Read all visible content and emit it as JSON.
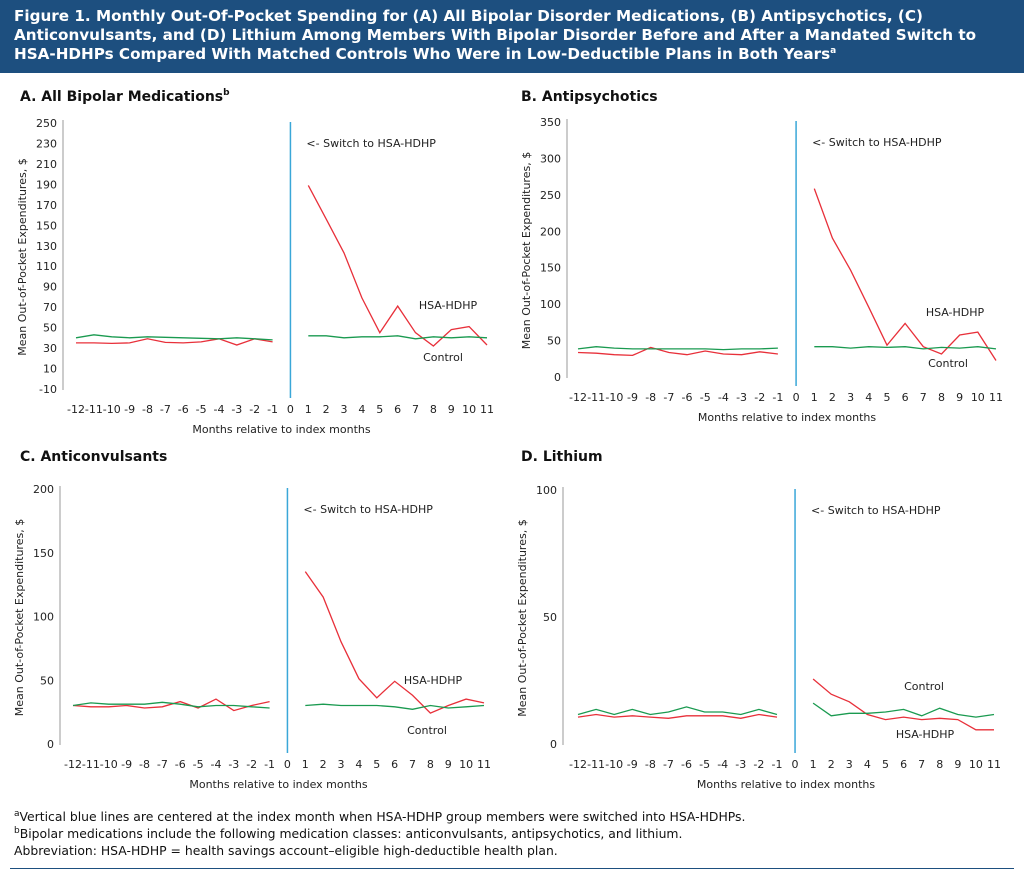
{
  "title": "Figure 1. Monthly Out-Of-Pocket Spending for (A) All Bipolar Disorder Medications, (B) Antipsychotics, (C) Anticonvulsants, and (D) Lithium Among Members With Bipolar Disorder Before and After a Mandated Switch to HSA-HDHPs Compared With Matched Controls Who Were in Low-Deductible Plans in Both Years",
  "title_sup": "a",
  "footnotes": [
    {
      "mark": "a",
      "text": "Vertical blue lines are centered at the index month when HSA-HDHP group members were switched into HSA-HDHPs."
    },
    {
      "mark": "b",
      "text": "Bipolar medications include the following medication classes: anticonvulsants, antipsychotics, and lithium."
    },
    {
      "text": "Abbreviation: HSA-HDHP = health savings account–eligible high-deductible health plan."
    }
  ],
  "chart_data": [
    {
      "type": "line",
      "title": "A. All Bipolar Medications",
      "title_sup": "b",
      "x_label": "Months relative to index months",
      "y_label": "Mean Out-of-Pocket Expenditures, $",
      "annotation": "<- Switch to HSA-HDHP",
      "vline_x": 0,
      "vline_color": "#3aa7d8",
      "x": [
        -12,
        -11,
        -10,
        -9,
        -8,
        -7,
        -6,
        -5,
        -4,
        -3,
        -2,
        -1,
        0,
        1,
        2,
        3,
        4,
        5,
        6,
        7,
        8,
        9,
        10,
        11
      ],
      "xlim": [
        -12,
        11
      ],
      "xticks": [
        -12,
        -11,
        -10,
        -9,
        -8,
        -7,
        -6,
        -5,
        -4,
        -3,
        -2,
        -1,
        0,
        1,
        2,
        3,
        4,
        5,
        6,
        7,
        8,
        9,
        10,
        11
      ],
      "ylim": [
        -10,
        250
      ],
      "yticks": [
        -10,
        10,
        30,
        50,
        70,
        90,
        110,
        130,
        150,
        170,
        190,
        210,
        230,
        250
      ],
      "grid": false,
      "series": [
        {
          "name": "HSA-HDHP",
          "color": "#e8303a",
          "values": [
            36,
            36,
            35.5,
            36,
            40,
            36.5,
            36,
            37,
            40,
            34,
            40,
            37,
            null,
            190,
            157,
            124,
            80,
            46,
            72,
            46,
            33,
            49,
            52,
            34
          ]
        },
        {
          "name": "Control",
          "color": "#1a9a50",
          "values": [
            41,
            44,
            42,
            41,
            42,
            41.5,
            41,
            40.5,
            40,
            41,
            40,
            39,
            null,
            43,
            43,
            41,
            42,
            42,
            43,
            40,
            42,
            41,
            42,
            41
          ]
        }
      ]
    },
    {
      "type": "line",
      "title": "B. Antipsychotics",
      "x_label": "Months relative to index months",
      "y_label": "Mean Out-of-Pocket Expenditures, $",
      "annotation": "<- Switch to HSA-HDHP",
      "vline_x": 0,
      "vline_color": "#3aa7d8",
      "x": [
        -12,
        -11,
        -10,
        -9,
        -8,
        -7,
        -6,
        -5,
        -4,
        -3,
        -2,
        -1,
        0,
        1,
        2,
        3,
        4,
        5,
        6,
        7,
        8,
        9,
        10,
        11
      ],
      "xlim": [
        -12,
        11
      ],
      "xticks": [
        -12,
        -11,
        -10,
        -9,
        -8,
        -7,
        -6,
        -5,
        -4,
        -3,
        -2,
        -1,
        0,
        1,
        2,
        3,
        4,
        5,
        6,
        7,
        8,
        9,
        10,
        11
      ],
      "ylim": [
        0,
        350
      ],
      "yticks": [
        0,
        50,
        100,
        150,
        200,
        250,
        300,
        350
      ],
      "grid": false,
      "series": [
        {
          "name": "HSA-HDHP",
          "color": "#e8303a",
          "values": [
            35,
            34,
            32,
            31,
            42,
            35,
            32,
            37,
            33,
            32,
            36,
            33,
            null,
            260,
            192,
            148,
            97,
            45,
            75,
            43,
            33,
            59,
            63,
            24
          ]
        },
        {
          "name": "Control",
          "color": "#1a9a50",
          "values": [
            40,
            43,
            41,
            40,
            40,
            40,
            40,
            40,
            39,
            40,
            40,
            41,
            null,
            43,
            43,
            41,
            43,
            42,
            43,
            40,
            42,
            41,
            43,
            40
          ]
        }
      ]
    },
    {
      "type": "line",
      "title": "C. Anticonvulsants",
      "x_label": "Months relative to index months",
      "y_label": "Mean Out-of-Pocket Expenditures, $",
      "annotation": "<- Switch to HSA-HDHP",
      "vline_x": 0,
      "vline_color": "#3aa7d8",
      "x": [
        -12,
        -11,
        -10,
        -9,
        -8,
        -7,
        -6,
        -5,
        -4,
        -3,
        -2,
        -1,
        0,
        1,
        2,
        3,
        4,
        5,
        6,
        7,
        8,
        9,
        10,
        11
      ],
      "xlim": [
        -12,
        11
      ],
      "xticks": [
        -12,
        -11,
        -10,
        -9,
        -8,
        -7,
        -6,
        -5,
        -4,
        -3,
        -2,
        -1,
        0,
        1,
        2,
        3,
        4,
        5,
        6,
        7,
        8,
        9,
        10,
        11
      ],
      "ylim": [
        0,
        200
      ],
      "yticks": [
        0,
        50,
        100,
        150,
        200
      ],
      "grid": false,
      "series": [
        {
          "name": "HSA-HDHP",
          "color": "#e8303a",
          "values": [
            31,
            30,
            30,
            31,
            29,
            30,
            34,
            29,
            36,
            27,
            31,
            34,
            null,
            136,
            116,
            81,
            52,
            37,
            50,
            39,
            25,
            31,
            36,
            33
          ]
        },
        {
          "name": "Control",
          "color": "#1a9a50",
          "values": [
            31,
            33,
            32,
            32,
            32,
            33.5,
            32,
            30,
            31,
            31,
            30,
            29,
            null,
            31,
            32,
            31,
            31,
            31,
            30,
            28,
            31,
            29,
            30,
            31
          ]
        }
      ]
    },
    {
      "type": "line",
      "title": "D. Lithium",
      "x_label": "Months relative to index months",
      "y_label": "Mean Out-of-Pocket Expenditures, $",
      "annotation": "<- Switch to HSA-HDHP",
      "vline_x": 0,
      "vline_color": "#3aa7d8",
      "x": [
        -12,
        -11,
        -10,
        -9,
        -8,
        -7,
        -6,
        -5,
        -4,
        -3,
        -2,
        -1,
        0,
        1,
        2,
        3,
        4,
        5,
        6,
        7,
        8,
        9,
        10,
        11
      ],
      "xlim": [
        -12,
        11
      ],
      "xticks": [
        -12,
        -11,
        -10,
        -9,
        -8,
        -7,
        -6,
        -5,
        -4,
        -3,
        -2,
        -1,
        0,
        1,
        2,
        3,
        4,
        5,
        6,
        7,
        8,
        9,
        10,
        11
      ],
      "ylim": [
        0,
        100
      ],
      "yticks": [
        0,
        50,
        100
      ],
      "grid": false,
      "series": [
        {
          "name": "HSA-HDHP",
          "color": "#e8303a",
          "values": [
            11,
            12,
            11,
            11.5,
            11,
            10.5,
            11.5,
            11.5,
            11.5,
            10.5,
            12,
            11,
            null,
            26,
            20,
            17,
            12,
            10,
            11,
            10,
            10.5,
            10,
            6,
            6
          ]
        },
        {
          "name": "Control",
          "color": "#1a9a50",
          "values": [
            12,
            14,
            12,
            14,
            12,
            13,
            15,
            13,
            13,
            12,
            14,
            12,
            null,
            16.5,
            11.5,
            12.5,
            12.5,
            13,
            14,
            11.5,
            14.5,
            12,
            11,
            12
          ]
        }
      ]
    }
  ]
}
